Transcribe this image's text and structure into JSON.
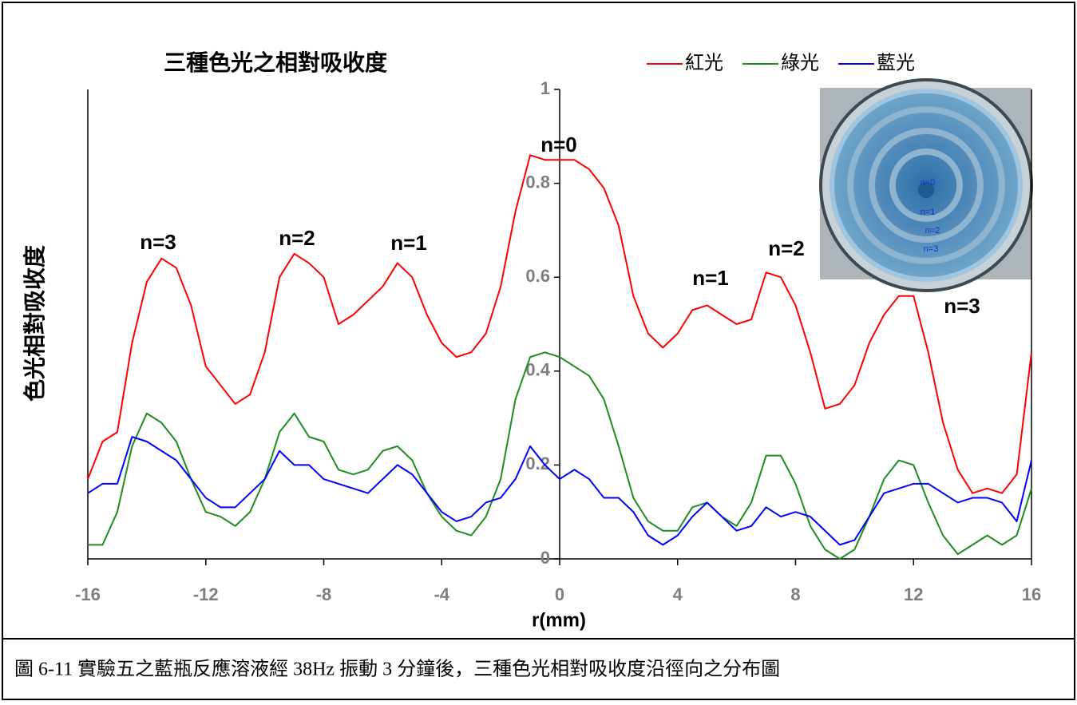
{
  "chart_data": {
    "type": "line",
    "title": "三種色光之相對吸收度",
    "y_label": "色光相對吸收度",
    "x_label": "r(mm)",
    "caption": "圖 6-11  實驗五之藍瓶反應溶液經 38Hz 振動 3 分鐘後，三種色光相對吸收度沿徑向之分布圖",
    "annotations": [
      "n=3",
      "n=2",
      "n=1",
      "n=0",
      "n=1",
      "n=2",
      "n=3"
    ],
    "inset_labels": [
      "n=0",
      "n=1",
      "n=2",
      "n=3"
    ],
    "xlim": [
      -16,
      16
    ],
    "xticks": [
      -16,
      -12,
      -8,
      -4,
      0,
      4,
      8,
      12,
      16
    ],
    "ylim": [
      0,
      1
    ],
    "yticks": [
      0,
      0.2,
      0.4,
      0.6,
      0.8,
      1
    ],
    "legend": "top-right",
    "x": [
      -16,
      -15.5,
      -15,
      -14.5,
      -14,
      -13.5,
      -13,
      -12.5,
      -12,
      -11.5,
      -11,
      -10.5,
      -10,
      -9.5,
      -9,
      -8.5,
      -8,
      -7.5,
      -7,
      -6.5,
      -6,
      -5.5,
      -5,
      -4.5,
      -4,
      -3.5,
      -3,
      -2.5,
      -2,
      -1.5,
      -1,
      -0.5,
      0,
      0.5,
      1,
      1.5,
      2,
      2.5,
      3,
      3.5,
      4,
      4.5,
      5,
      5.5,
      6,
      6.5,
      7,
      7.5,
      8,
      8.5,
      9,
      9.5,
      10,
      10.5,
      11,
      11.5,
      12,
      12.5,
      13,
      13.5,
      14,
      14.5,
      15,
      15.5,
      16
    ],
    "series": [
      {
        "name": "紅光",
        "color": "#ff0000",
        "values": [
          0.17,
          0.25,
          0.27,
          0.46,
          0.59,
          0.64,
          0.62,
          0.54,
          0.41,
          0.37,
          0.33,
          0.35,
          0.44,
          0.6,
          0.65,
          0.63,
          0.6,
          0.5,
          0.52,
          0.55,
          0.58,
          0.63,
          0.6,
          0.52,
          0.46,
          0.43,
          0.44,
          0.48,
          0.58,
          0.74,
          0.86,
          0.85,
          0.85,
          0.85,
          0.83,
          0.79,
          0.71,
          0.56,
          0.48,
          0.45,
          0.48,
          0.53,
          0.54,
          0.52,
          0.5,
          0.51,
          0.61,
          0.6,
          0.54,
          0.44,
          0.32,
          0.33,
          0.37,
          0.46,
          0.52,
          0.56,
          0.56,
          0.44,
          0.29,
          0.19,
          0.14,
          0.15,
          0.14,
          0.18,
          0.44
        ]
      },
      {
        "name": "綠光",
        "color": "#1f8c1f",
        "values": [
          0.03,
          0.03,
          0.1,
          0.24,
          0.31,
          0.29,
          0.25,
          0.17,
          0.1,
          0.09,
          0.07,
          0.1,
          0.17,
          0.27,
          0.31,
          0.26,
          0.25,
          0.19,
          0.18,
          0.19,
          0.23,
          0.24,
          0.21,
          0.14,
          0.09,
          0.06,
          0.05,
          0.09,
          0.17,
          0.34,
          0.43,
          0.44,
          0.43,
          0.41,
          0.39,
          0.34,
          0.24,
          0.13,
          0.08,
          0.06,
          0.06,
          0.11,
          0.12,
          0.09,
          0.07,
          0.12,
          0.22,
          0.22,
          0.16,
          0.07,
          0.02,
          0.0,
          0.02,
          0.09,
          0.17,
          0.21,
          0.2,
          0.12,
          0.05,
          0.01,
          0.03,
          0.05,
          0.03,
          0.05,
          0.15
        ]
      },
      {
        "name": "藍光",
        "color": "#0000ff",
        "values": [
          0.14,
          0.16,
          0.16,
          0.26,
          0.25,
          0.23,
          0.21,
          0.17,
          0.13,
          0.11,
          0.11,
          0.14,
          0.17,
          0.23,
          0.2,
          0.2,
          0.17,
          0.16,
          0.15,
          0.14,
          0.17,
          0.2,
          0.18,
          0.14,
          0.1,
          0.08,
          0.09,
          0.12,
          0.13,
          0.17,
          0.24,
          0.2,
          0.17,
          0.19,
          0.17,
          0.13,
          0.13,
          0.1,
          0.05,
          0.03,
          0.05,
          0.09,
          0.12,
          0.09,
          0.06,
          0.07,
          0.11,
          0.09,
          0.1,
          0.09,
          0.06,
          0.03,
          0.04,
          0.09,
          0.14,
          0.15,
          0.16,
          0.16,
          0.14,
          0.12,
          0.13,
          0.13,
          0.12,
          0.08,
          0.21
        ]
      }
    ]
  }
}
